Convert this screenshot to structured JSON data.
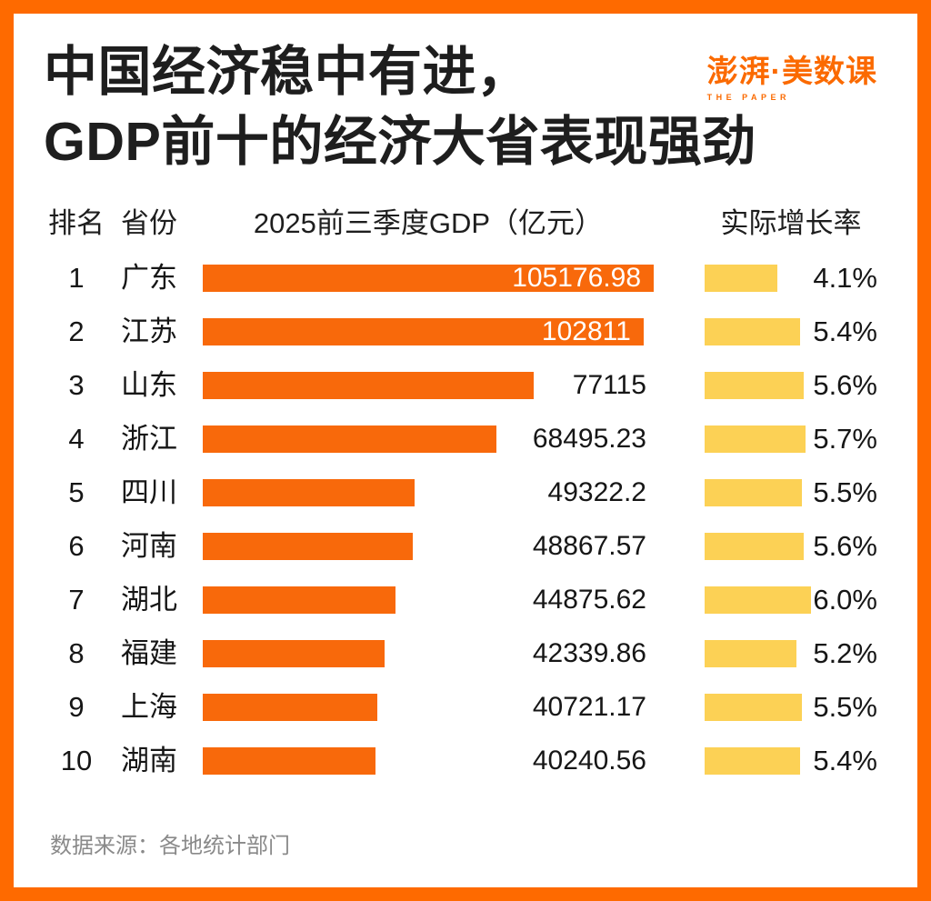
{
  "title": {
    "line1": "中国经济稳中有进，",
    "line2": "GDP前十的经济大省表现强劲"
  },
  "logo": {
    "main": "澎湃·美数课",
    "sub": "THE PAPER"
  },
  "chart_data": {
    "type": "bar",
    "title": "中国经济稳中有进，GDP前十的经济大省表现强劲",
    "columns": {
      "rank": "排名",
      "province": "省份",
      "gdp": "2025前三季度GDP（亿元）",
      "growth": "实际增长率"
    },
    "gdp_axis_max": 105176.98,
    "growth_axis_max": 6.0,
    "bar_color": "#F8690B",
    "growth_bar_color": "#FCD155",
    "rows": [
      {
        "rank": "1",
        "province": "广东",
        "gdp": 105176.98,
        "gdp_label": "105176.98",
        "growth": 4.1,
        "growth_label": "4.1%"
      },
      {
        "rank": "2",
        "province": "江苏",
        "gdp": 102811,
        "gdp_label": "102811",
        "growth": 5.4,
        "growth_label": "5.4%"
      },
      {
        "rank": "3",
        "province": "山东",
        "gdp": 77115,
        "gdp_label": "77115",
        "growth": 5.6,
        "growth_label": "5.6%"
      },
      {
        "rank": "4",
        "province": "浙江",
        "gdp": 68495.23,
        "gdp_label": "68495.23",
        "growth": 5.7,
        "growth_label": "5.7%"
      },
      {
        "rank": "5",
        "province": "四川",
        "gdp": 49322.2,
        "gdp_label": "49322.2",
        "growth": 5.5,
        "growth_label": "5.5%"
      },
      {
        "rank": "6",
        "province": "河南",
        "gdp": 48867.57,
        "gdp_label": "48867.57",
        "growth": 5.6,
        "growth_label": "5.6%"
      },
      {
        "rank": "7",
        "province": "湖北",
        "gdp": 44875.62,
        "gdp_label": "44875.62",
        "growth": 6.0,
        "growth_label": "6.0%"
      },
      {
        "rank": "8",
        "province": "福建",
        "gdp": 42339.86,
        "gdp_label": "42339.86",
        "growth": 5.2,
        "growth_label": "5.2%"
      },
      {
        "rank": "9",
        "province": "上海",
        "gdp": 40721.17,
        "gdp_label": "40721.17",
        "growth": 5.5,
        "growth_label": "5.5%"
      },
      {
        "rank": "10",
        "province": "湖南",
        "gdp": 40240.56,
        "gdp_label": "40240.56",
        "growth": 5.4,
        "growth_label": "5.4%"
      }
    ]
  },
  "footer": {
    "source": "数据来源：各地统计部门"
  },
  "colors": {
    "frame_orange": "#FE6A00",
    "bar_orange": "#F8690B",
    "bar_yellow": "#FCD155",
    "title_text": "#1e1e1e",
    "source_text": "#8a8a8a"
  }
}
